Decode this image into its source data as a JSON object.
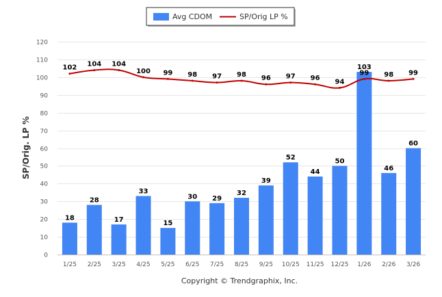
{
  "chart_data": {
    "type": "bar",
    "title": "",
    "xlabel": "",
    "ylabel": "SP/Orig. LP %",
    "ylim": [
      0,
      120
    ],
    "yticks": [
      0,
      10,
      20,
      30,
      40,
      50,
      60,
      70,
      80,
      90,
      100,
      110,
      120
    ],
    "grid": true,
    "legend_position": "top-center",
    "categories": [
      "1/25",
      "2/25",
      "3/25",
      "4/25",
      "5/25",
      "6/25",
      "7/25",
      "8/25",
      "9/25",
      "10/25",
      "11/25",
      "12/25",
      "1/26",
      "2/26",
      "3/26"
    ],
    "series": [
      {
        "name": "Avg CDOM",
        "type": "bar",
        "color": "#4285f4",
        "values": [
          18,
          28,
          17,
          33,
          15,
          30,
          29,
          32,
          39,
          52,
          44,
          50,
          103,
          46,
          60
        ]
      },
      {
        "name": "SP/Orig LP %",
        "type": "line",
        "color": "#c00000",
        "values": [
          102,
          104,
          104,
          100,
          99,
          98,
          97,
          98,
          96,
          97,
          96,
          94,
          99,
          98,
          99
        ]
      }
    ]
  },
  "footer": {
    "copyright": "Copyright © Trendgraphix, Inc."
  }
}
